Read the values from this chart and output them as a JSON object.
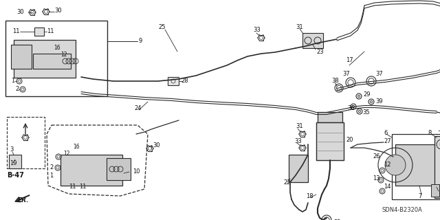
{
  "bg_color": "#ffffff",
  "line_color": "#2a2a2a",
  "text_color": "#111111",
  "diagram_code": "SDN4-B2320A",
  "figsize": [
    6.4,
    3.2
  ],
  "dpi": 100
}
